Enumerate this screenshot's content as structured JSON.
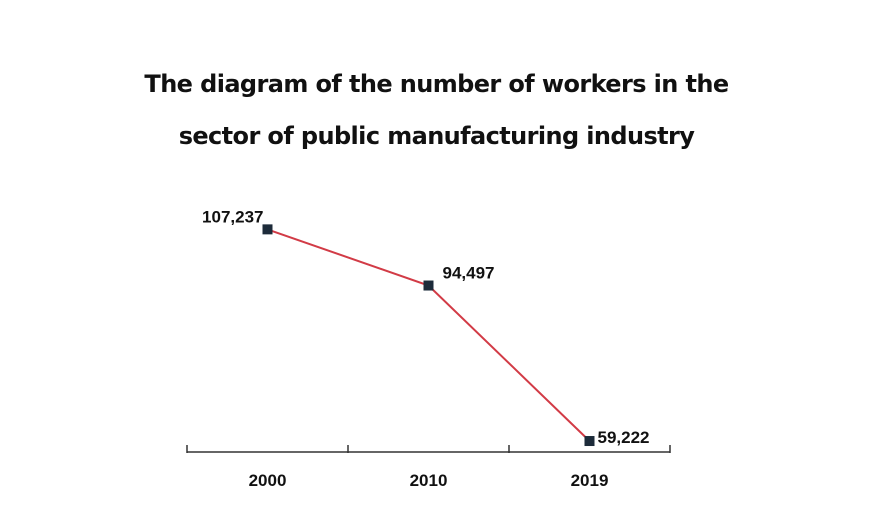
{
  "chart_data": {
    "type": "line",
    "title_lines": [
      "The diagram of the number of workers in the",
      "sector of public manufacturing industry"
    ],
    "categories": [
      "2000",
      "2010",
      "2019"
    ],
    "values": [
      107237,
      94497,
      59222
    ],
    "value_labels": [
      "107,237",
      "94,497",
      "59,222"
    ],
    "ylim": [
      59000,
      108000
    ],
    "grid": false,
    "legend": "none",
    "line_color": "#d23b46",
    "marker_color": "#1d2b3a",
    "axis_color": "#333333"
  }
}
